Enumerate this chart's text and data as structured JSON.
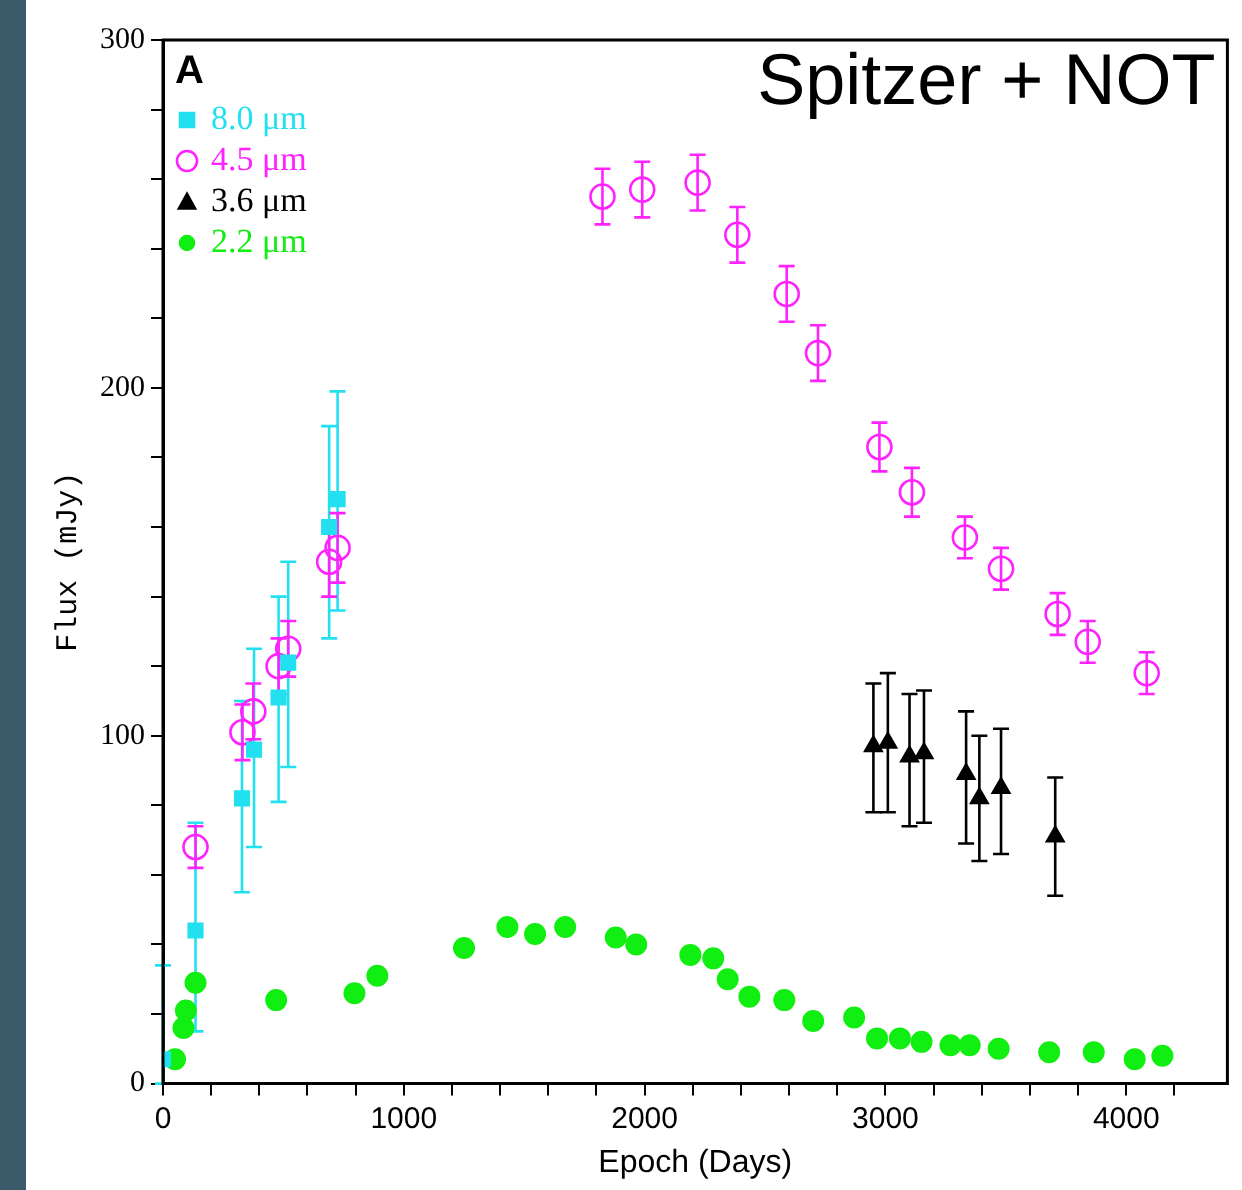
{
  "chart_data": {
    "type": "scatter",
    "title": "Spitzer + NOT",
    "xlabel": "Epoch (Days)",
    "ylabel": "Flux (mJy)",
    "annotations": [
      "A"
    ],
    "xlim": [
      0,
      4420
    ],
    "ylim": [
      0,
      300
    ],
    "xticks": [
      0,
      {
        "value": 200,
        "label": null
      },
      {
        "value": 400,
        "label": null
      },
      {
        "value": 600,
        "label": null
      },
      {
        "value": 800,
        "label": null
      },
      1000,
      {
        "value": 1200,
        "label": null
      },
      {
        "value": 1400,
        "label": null
      },
      {
        "value": 1600,
        "label": null
      },
      {
        "value": 1800,
        "label": null
      },
      2000,
      {
        "value": 2200,
        "label": null
      },
      {
        "value": 2400,
        "label": null
      },
      {
        "value": 2600,
        "label": null
      },
      {
        "value": 2800,
        "label": null
      },
      3000,
      {
        "value": 3200,
        "label": null
      },
      {
        "value": 3400,
        "label": null
      },
      {
        "value": 3600,
        "label": null
      },
      {
        "value": 3800,
        "label": null
      },
      4000,
      {
        "value": 4200,
        "label": null
      }
    ],
    "yticks": [
      0,
      {
        "value": 20,
        "label": null
      },
      {
        "value": 40,
        "label": null
      },
      {
        "value": 60,
        "label": null
      },
      {
        "value": 80,
        "label": null
      },
      100,
      {
        "value": 120,
        "label": null
      },
      {
        "value": 140,
        "label": null
      },
      {
        "value": 160,
        "label": null
      },
      {
        "value": 180,
        "label": null
      },
      200,
      {
        "value": 220,
        "label": null
      },
      {
        "value": 240,
        "label": null
      },
      {
        "value": 260,
        "label": null
      },
      {
        "value": 280,
        "label": null
      },
      300
    ],
    "legend": "top left",
    "series": [
      {
        "name": "8.0 μm",
        "color": "#22e0f0",
        "marker": "square",
        "x": [
          0,
          135,
          328,
          378,
          480,
          520,
          690,
          725
        ],
        "values": [
          7,
          44,
          82,
          96,
          111,
          121,
          160,
          168
        ],
        "errors": [
          [
            0,
            34
          ],
          [
            15,
            75
          ],
          [
            55,
            110
          ],
          [
            68,
            125
          ],
          [
            81,
            140
          ],
          [
            91,
            150
          ],
          [
            128,
            189
          ],
          [
            136,
            199
          ]
        ]
      },
      {
        "name": "4.5 μm",
        "color": "#ff22ff",
        "marker": "circle",
        "x": [
          135,
          330,
          375,
          480,
          520,
          690,
          725,
          1825,
          1990,
          2220,
          2385,
          2590,
          2720,
          2975,
          3110,
          3330,
          3480,
          3715,
          3840,
          4085
        ],
        "values": [
          68,
          101,
          107,
          120,
          125,
          150,
          154,
          255,
          257,
          259,
          244,
          227,
          210,
          183,
          170,
          157,
          148,
          135,
          127,
          118
        ],
        "errors": [
          6,
          8,
          8,
          8,
          8,
          10,
          10,
          8,
          8,
          8,
          8,
          8,
          8,
          7,
          7,
          6,
          6,
          6,
          6,
          6
        ]
      },
      {
        "name": "3.6 μm",
        "color": "#000000",
        "marker": "triangle",
        "x": [
          2950,
          3010,
          3100,
          3160,
          3335,
          3390,
          3480,
          3705
        ],
        "values": [
          97,
          98,
          94,
          95,
          89,
          82,
          85,
          71
        ],
        "errors": [
          [
            78,
            115
          ],
          [
            78,
            118
          ],
          [
            74,
            112
          ],
          [
            75,
            113
          ],
          [
            69,
            107
          ],
          [
            64,
            100
          ],
          [
            66,
            102
          ],
          [
            54,
            88
          ]
        ]
      },
      {
        "name": "2.2 μm",
        "color": "#11ee11",
        "marker": "circle",
        "x": [
          50,
          85,
          95,
          135,
          470,
          795,
          890,
          1250,
          1430,
          1545,
          1670,
          1880,
          1965,
          2190,
          2285,
          2345,
          2435,
          2580,
          2700,
          2870,
          2965,
          3060,
          3150,
          3270,
          3350,
          3470,
          3680,
          3865,
          4035,
          4150
        ],
        "values": [
          7,
          16,
          21,
          29,
          24,
          26,
          31,
          39,
          45,
          43,
          45,
          42,
          40,
          37,
          36,
          30,
          25,
          24,
          18,
          19,
          13,
          13,
          12,
          11,
          11,
          10,
          9,
          9,
          7,
          8
        ]
      }
    ]
  }
}
